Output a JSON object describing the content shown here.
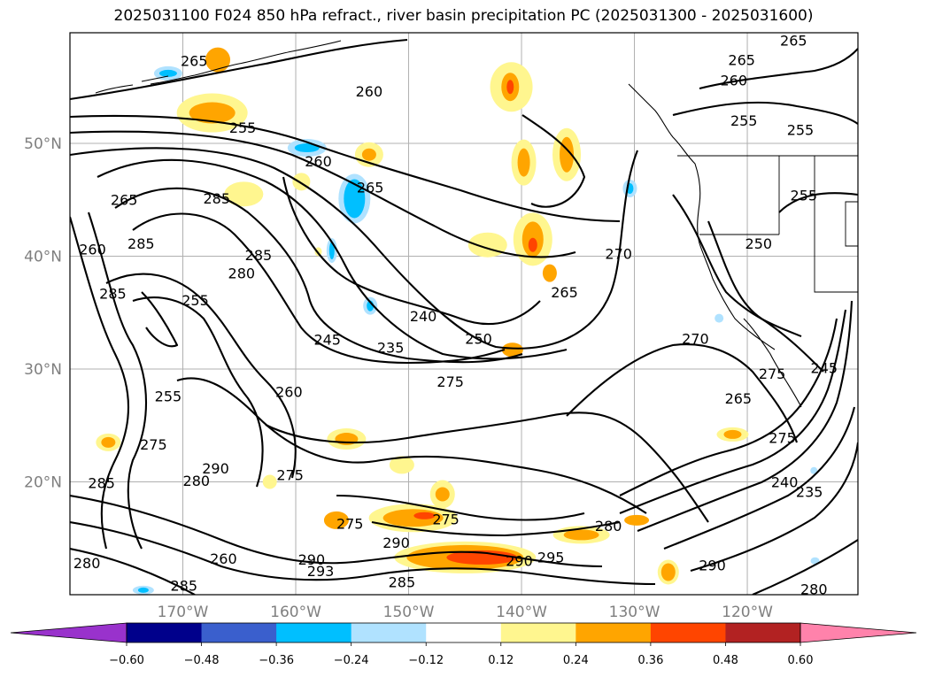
{
  "title": "2025031100 F024 850 hPa refract., river basin precipitation PC (2025031300 - 2025031600)",
  "lat_labels": [
    "50°N",
    "40°N",
    "30°N",
    "20°N"
  ],
  "lon_labels": [
    "170°W",
    "160°W",
    "150°W",
    "140°W",
    "130°W",
    "120°W"
  ],
  "contour_labels": [
    {
      "text": "265",
      "lon": -169.0,
      "lat": 57.2
    },
    {
      "text": "260",
      "lon": -153.5,
      "lat": 54.5
    },
    {
      "text": "255",
      "lon": -164.7,
      "lat": 51.3
    },
    {
      "text": "260",
      "lon": -158.0,
      "lat": 48.3
    },
    {
      "text": "265",
      "lon": -153.4,
      "lat": 46.0
    },
    {
      "text": "285",
      "lon": -167.0,
      "lat": 45.0
    },
    {
      "text": "265",
      "lon": -175.2,
      "lat": 44.9
    },
    {
      "text": "285",
      "lon": -173.7,
      "lat": 41.0
    },
    {
      "text": "260",
      "lon": -178.0,
      "lat": 40.5
    },
    {
      "text": "285",
      "lon": -163.3,
      "lat": 40.0
    },
    {
      "text": "280",
      "lon": -164.8,
      "lat": 38.4
    },
    {
      "text": "285",
      "lon": -176.2,
      "lat": 36.6
    },
    {
      "text": "255",
      "lon": -168.9,
      "lat": 36.0
    },
    {
      "text": "240",
      "lon": -148.7,
      "lat": 34.6
    },
    {
      "text": "245",
      "lon": -157.2,
      "lat": 32.5
    },
    {
      "text": "235",
      "lon": -151.6,
      "lat": 31.8
    },
    {
      "text": "250",
      "lon": -143.8,
      "lat": 32.6
    },
    {
      "text": "260",
      "lon": -160.6,
      "lat": 27.9
    },
    {
      "text": "255",
      "lon": -171.3,
      "lat": 27.5
    },
    {
      "text": "275",
      "lon": -146.3,
      "lat": 28.8
    },
    {
      "text": "270",
      "lon": -131.4,
      "lat": 40.1
    },
    {
      "text": "265",
      "lon": -136.2,
      "lat": 36.7
    },
    {
      "text": "270",
      "lon": -124.6,
      "lat": 32.6
    },
    {
      "text": "275",
      "lon": -117.8,
      "lat": 29.5
    },
    {
      "text": "265",
      "lon": -120.8,
      "lat": 27.3
    },
    {
      "text": "275",
      "lon": -116.9,
      "lat": 23.8
    },
    {
      "text": "265",
      "lon": -120.5,
      "lat": 57.3
    },
    {
      "text": "260",
      "lon": -121.2,
      "lat": 55.5
    },
    {
      "text": "255",
      "lon": -120.3,
      "lat": 51.9
    },
    {
      "text": "255",
      "lon": -115.3,
      "lat": 51.1
    },
    {
      "text": "265",
      "lon": -115.9,
      "lat": 59.0
    },
    {
      "text": "255",
      "lon": -115.0,
      "lat": 45.3
    },
    {
      "text": "250",
      "lon": -119.0,
      "lat": 41.0
    },
    {
      "text": "240",
      "lon": -116.7,
      "lat": 19.9
    },
    {
      "text": "235",
      "lon": -114.5,
      "lat": 19.0
    },
    {
      "text": "245",
      "lon": -113.2,
      "lat": 30.0
    },
    {
      "text": "290",
      "lon": -167.1,
      "lat": 21.1
    },
    {
      "text": "280",
      "lon": -168.8,
      "lat": 20.0
    },
    {
      "text": "285",
      "lon": -177.2,
      "lat": 19.8
    },
    {
      "text": "275",
      "lon": -160.5,
      "lat": 20.5
    },
    {
      "text": "275",
      "lon": -172.6,
      "lat": 23.2
    },
    {
      "text": "275",
      "lon": -155.2,
      "lat": 16.2
    },
    {
      "text": "275",
      "lon": -146.7,
      "lat": 16.6
    },
    {
      "text": "290",
      "lon": -151.1,
      "lat": 14.5
    },
    {
      "text": "290",
      "lon": -158.6,
      "lat": 13.0
    },
    {
      "text": "293",
      "lon": -157.8,
      "lat": 12.0
    },
    {
      "text": "285",
      "lon": -150.6,
      "lat": 11.0
    },
    {
      "text": "290",
      "lon": -140.2,
      "lat": 12.9
    },
    {
      "text": "295",
      "lon": -137.4,
      "lat": 13.2
    },
    {
      "text": "280",
      "lon": -132.3,
      "lat": 16.0
    },
    {
      "text": "290",
      "lon": -123.1,
      "lat": 12.5
    },
    {
      "text": "260",
      "lon": -166.4,
      "lat": 13.1
    },
    {
      "text": "280",
      "lon": -178.5,
      "lat": 12.7
    },
    {
      "text": "285",
      "lon": -169.9,
      "lat": 10.7
    },
    {
      "text": "280",
      "lon": -114.1,
      "lat": 10.4
    }
  ],
  "colorbar": {
    "levels": [
      "−0.60",
      "−0.48",
      "−0.36",
      "−0.24",
      "−0.12",
      "0.12",
      "0.24",
      "0.36",
      "0.48",
      "0.60"
    ],
    "colors": [
      "#9932cc",
      "#00008b",
      "#3a5fcd",
      "#00bfff",
      "#b0e2ff",
      "#ffffff",
      "#fff68f",
      "#ffa500",
      "#ff4500",
      "#b22222",
      "#ff82ab"
    ]
  },
  "palette": {
    "pos1": "#fff68f",
    "pos2": "#ffa500",
    "pos3": "#ff4500",
    "neg1": "#b0e2ff",
    "neg2": "#00bfff",
    "neg3": "#3a5fcd"
  }
}
